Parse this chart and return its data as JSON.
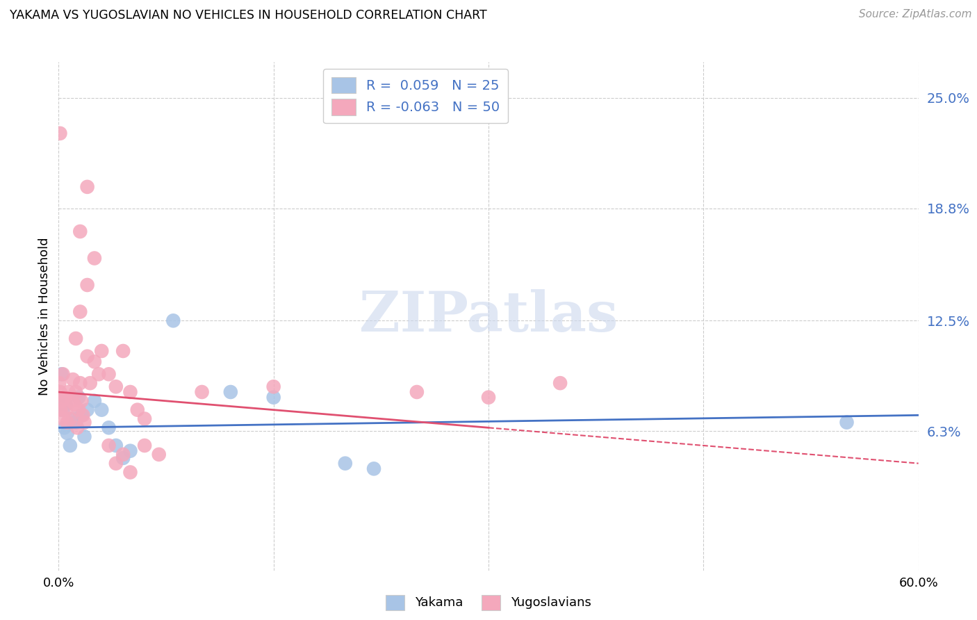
{
  "title": "YAKAMA VS YUGOSLAVIAN NO VEHICLES IN HOUSEHOLD CORRELATION CHART",
  "source": "Source: ZipAtlas.com",
  "ylabel": "No Vehicles in Household",
  "ytick_vals": [
    6.3,
    12.5,
    18.8,
    25.0
  ],
  "yakama_color": "#a8c4e6",
  "yugo_color": "#f4a8bc",
  "yakama_line_color": "#4472c4",
  "yugo_line_color": "#e05070",
  "background_color": "#ffffff",
  "xlim": [
    0.0,
    60.0
  ],
  "ylim": [
    -1.5,
    27.0
  ],
  "yakama_points": [
    [
      0.1,
      8.0
    ],
    [
      0.2,
      9.5
    ],
    [
      0.3,
      7.5
    ],
    [
      0.4,
      6.5
    ],
    [
      0.5,
      7.8
    ],
    [
      0.6,
      6.2
    ],
    [
      0.8,
      5.5
    ],
    [
      1.0,
      7.0
    ],
    [
      1.2,
      6.8
    ],
    [
      1.4,
      8.2
    ],
    [
      1.6,
      7.2
    ],
    [
      1.8,
      6.0
    ],
    [
      2.0,
      7.5
    ],
    [
      2.5,
      8.0
    ],
    [
      3.0,
      7.5
    ],
    [
      3.5,
      6.5
    ],
    [
      4.0,
      5.5
    ],
    [
      4.5,
      4.8
    ],
    [
      5.0,
      5.2
    ],
    [
      8.0,
      12.5
    ],
    [
      12.0,
      8.5
    ],
    [
      15.0,
      8.2
    ],
    [
      20.0,
      4.5
    ],
    [
      22.0,
      4.2
    ],
    [
      55.0,
      6.8
    ]
  ],
  "yugo_points": [
    [
      0.05,
      9.0
    ],
    [
      0.1,
      8.5
    ],
    [
      0.15,
      7.5
    ],
    [
      0.2,
      8.0
    ],
    [
      0.25,
      7.0
    ],
    [
      0.3,
      9.5
    ],
    [
      0.4,
      8.2
    ],
    [
      0.5,
      7.5
    ],
    [
      0.6,
      6.8
    ],
    [
      0.7,
      8.5
    ],
    [
      0.8,
      7.0
    ],
    [
      0.9,
      8.0
    ],
    [
      1.0,
      9.2
    ],
    [
      1.1,
      7.8
    ],
    [
      1.2,
      8.5
    ],
    [
      1.3,
      6.5
    ],
    [
      1.4,
      7.5
    ],
    [
      1.5,
      9.0
    ],
    [
      1.6,
      8.0
    ],
    [
      1.7,
      7.2
    ],
    [
      1.8,
      6.8
    ],
    [
      2.0,
      10.5
    ],
    [
      2.2,
      9.0
    ],
    [
      2.5,
      10.2
    ],
    [
      2.8,
      9.5
    ],
    [
      3.0,
      10.8
    ],
    [
      3.5,
      9.5
    ],
    [
      4.0,
      8.8
    ],
    [
      4.5,
      10.8
    ],
    [
      5.0,
      8.5
    ],
    [
      5.5,
      7.5
    ],
    [
      6.0,
      7.0
    ],
    [
      1.2,
      11.5
    ],
    [
      1.5,
      13.0
    ],
    [
      2.0,
      14.5
    ],
    [
      2.5,
      16.0
    ],
    [
      1.5,
      17.5
    ],
    [
      2.0,
      20.0
    ],
    [
      0.1,
      23.0
    ],
    [
      3.5,
      5.5
    ],
    [
      4.0,
      4.5
    ],
    [
      4.5,
      5.0
    ],
    [
      5.0,
      4.0
    ],
    [
      6.0,
      5.5
    ],
    [
      7.0,
      5.0
    ],
    [
      10.0,
      8.5
    ],
    [
      15.0,
      8.8
    ],
    [
      25.0,
      8.5
    ],
    [
      35.0,
      9.0
    ],
    [
      30.0,
      8.2
    ]
  ]
}
